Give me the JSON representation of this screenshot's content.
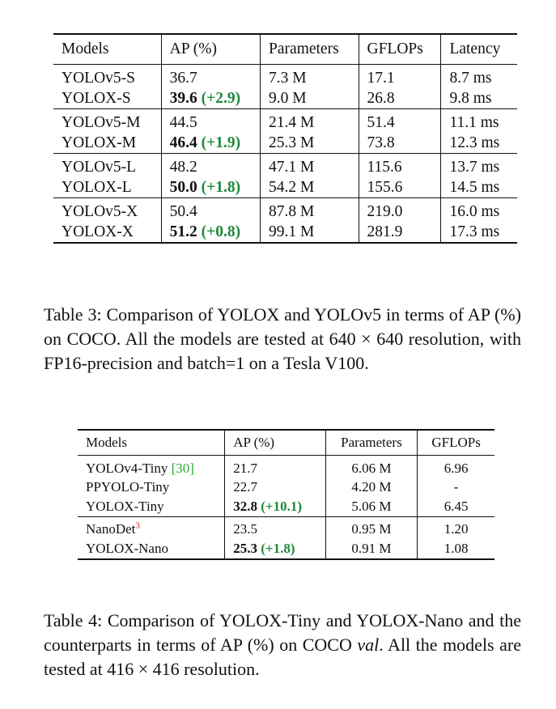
{
  "table3": {
    "headers": [
      "Models",
      "AP (%)",
      "Parameters",
      "GFLOPs",
      "Latency"
    ],
    "groups": [
      [
        {
          "model": "YOLOv5-S",
          "ap": "36.7",
          "ap_gain": "",
          "params": "7.3 M",
          "gflops": "17.1",
          "latency": "8.7 ms"
        },
        {
          "model": "YOLOX-S",
          "ap": "39.6",
          "ap_gain": "(+2.9)",
          "params": "9.0 M",
          "gflops": "26.8",
          "latency": "9.8 ms"
        }
      ],
      [
        {
          "model": "YOLOv5-M",
          "ap": "44.5",
          "ap_gain": "",
          "params": "21.4 M",
          "gflops": "51.4",
          "latency": "11.1 ms"
        },
        {
          "model": "YOLOX-M",
          "ap": "46.4",
          "ap_gain": "(+1.9)",
          "params": "25.3 M",
          "gflops": "73.8",
          "latency": "12.3 ms"
        }
      ],
      [
        {
          "model": "YOLOv5-L",
          "ap": "48.2",
          "ap_gain": "",
          "params": "47.1 M",
          "gflops": "115.6",
          "latency": "13.7 ms"
        },
        {
          "model": "YOLOX-L",
          "ap": "50.0",
          "ap_gain": "(+1.8)",
          "params": "54.2 M",
          "gflops": "155.6",
          "latency": "14.5 ms"
        }
      ],
      [
        {
          "model": "YOLOv5-X",
          "ap": "50.4",
          "ap_gain": "",
          "params": "87.8 M",
          "gflops": "219.0",
          "latency": "16.0 ms"
        },
        {
          "model": "YOLOX-X",
          "ap": "51.2",
          "ap_gain": "(+0.8)",
          "params": "99.1 M",
          "gflops": "281.9",
          "latency": "17.3 ms"
        }
      ]
    ],
    "caption": "Table 3: Comparison of YOLOX and YOLOv5 in terms of AP (%) on COCO. All the models are tested at 640 × 640 resolution, with FP16-precision and batch=1 on a Tesla V100."
  },
  "table4": {
    "headers": [
      "Models",
      "AP (%)",
      "Parameters",
      "GFLOPs"
    ],
    "groups": [
      [
        {
          "model": "YOLOv4-Tiny",
          "cite": "[30]",
          "sup": "",
          "ap": "21.7",
          "ap_gain": "",
          "params": "6.06 M",
          "gflops": "6.96"
        },
        {
          "model": "PPYOLO-Tiny",
          "cite": "",
          "sup": "",
          "ap": "22.7",
          "ap_gain": "",
          "params": "4.20 M",
          "gflops": "-"
        },
        {
          "model": "YOLOX-Tiny",
          "cite": "",
          "sup": "",
          "ap": "32.8",
          "ap_gain": "(+10.1)",
          "params": "5.06 M",
          "gflops": "6.45"
        }
      ],
      [
        {
          "model": "NanoDet",
          "cite": "",
          "sup": "3",
          "ap": "23.5",
          "ap_gain": "",
          "params": "0.95 M",
          "gflops": "1.20"
        },
        {
          "model": "YOLOX-Nano",
          "cite": "",
          "sup": "",
          "ap": "25.3",
          "ap_gain": "(+1.8)",
          "params": "0.91 M",
          "gflops": "1.08"
        }
      ]
    ],
    "caption_parts": {
      "before": "Table 4: Comparison of YOLOX-Tiny and YOLOX-Nano and the counterparts in terms of AP (%) on COCO ",
      "italic": "val",
      "after": ". All the models are tested at 416 × 416 resolution."
    }
  }
}
